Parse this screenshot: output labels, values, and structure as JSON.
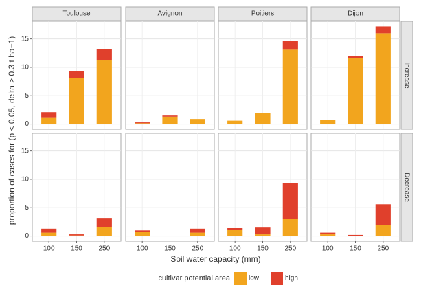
{
  "chart_data": {
    "type": "bar",
    "stacked": true,
    "y_label": "proportion of cases for (p < 0.05, delta > 0.3 t ha−1)",
    "x_label": "Soil water capacity (mm)",
    "legend_title": "cultivar potential area",
    "columns": [
      "Toulouse",
      "Avignon",
      "Poitiers",
      "Dijon"
    ],
    "rows": [
      "Increase",
      "Decrease"
    ],
    "categories": [
      "100",
      "150",
      "250"
    ],
    "ylim": [
      -0.9,
      18.1
    ],
    "yticks": [
      0,
      5,
      10,
      15
    ],
    "grid": true,
    "series": [
      {
        "name": "low",
        "color": "#f2a51e",
        "values": [
          [
            [
              1.2,
              8.1,
              11.2
            ],
            [
              0.15,
              1.3,
              0.9
            ],
            [
              0.6,
              2.0,
              13.1
            ],
            [
              0.7,
              11.6,
              16.0
            ]
          ],
          [
            [
              0.6,
              0.1,
              1.6
            ],
            [
              0.7,
              0,
              0.6
            ],
            [
              1.1,
              0.3,
              3.0
            ],
            [
              0.3,
              0.05,
              2.0
            ]
          ]
        ]
      },
      {
        "name": "high",
        "color": "#e0402c",
        "values": [
          [
            [
              0.9,
              1.2,
              2.0
            ],
            [
              0.15,
              0.2,
              0
            ],
            [
              0,
              0,
              1.5
            ],
            [
              0,
              0.4,
              1.2
            ]
          ],
          [
            [
              0.7,
              0.2,
              1.6
            ],
            [
              0.3,
              0,
              0.7
            ],
            [
              0.3,
              1.2,
              6.3
            ],
            [
              0.3,
              0.15,
              3.6
            ]
          ]
        ]
      }
    ]
  }
}
